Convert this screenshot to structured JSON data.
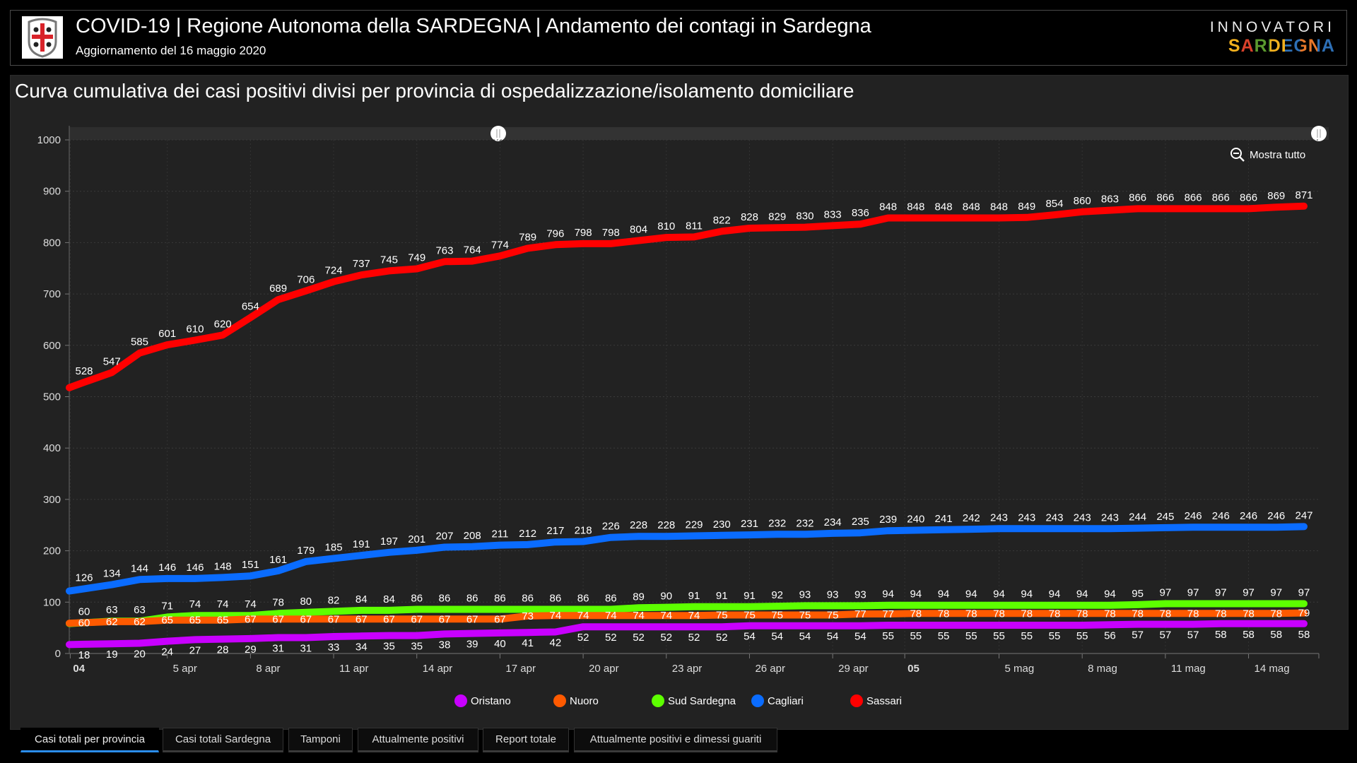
{
  "header": {
    "title": "COVID-19 | Regione Autonoma della SARDEGNA | Andamento dei contagi in Sardegna",
    "subtitle": "Aggiornamento del 16 maggio 2020",
    "brand_top": "INNOVATORI",
    "brand_bottom": "SARDEGNA"
  },
  "panel": {
    "title": "Curva cumulativa dei casi positivi divisi per provincia di ospedalizzazione/isolamento domiciliare",
    "zoom_reset_label": "Mostra tutto"
  },
  "tabs": [
    {
      "label": "Casi totali per provincia",
      "active": true
    },
    {
      "label": "Casi totali Sardegna",
      "active": false
    },
    {
      "label": "Tamponi",
      "active": false
    },
    {
      "label": "Attualmente positivi",
      "active": false
    },
    {
      "label": "Report totale",
      "active": false
    },
    {
      "label": "Attualmente positivi e dimessi guariti",
      "active": false
    }
  ],
  "chart_data": {
    "type": "line",
    "title": "Curva cumulativa dei casi positivi divisi per provincia di ospedalizzazione/isolamento domiciliare",
    "xlabel": "",
    "ylabel": "",
    "ylim": [
      0,
      1000
    ],
    "y_ticks": [
      0,
      100,
      200,
      300,
      400,
      500,
      600,
      700,
      800,
      900,
      1000
    ],
    "x_tick_labels": [
      "04",
      "5 apr",
      "8 apr",
      "11 apr",
      "14 apr",
      "17 apr",
      "20 apr",
      "23 apr",
      "26 apr",
      "29 apr",
      "05",
      "5 mag",
      "8 mag",
      "11 mag",
      "14 mag"
    ],
    "grid": true,
    "legend_position": "bottom-center",
    "series": [
      {
        "name": "Oristano",
        "color": "#c800ff",
        "values": [
          18,
          19,
          20,
          24,
          27,
          28,
          29,
          31,
          31,
          33,
          34,
          35,
          35,
          38,
          39,
          40,
          41,
          42,
          52,
          52,
          52,
          52,
          52,
          52,
          54,
          54,
          54,
          54,
          54,
          55,
          55,
          55,
          55,
          55,
          55,
          55,
          55,
          56,
          57,
          57,
          57,
          58,
          58,
          58,
          58
        ]
      },
      {
        "name": "Nuoro",
        "color": "#ff5a00",
        "values": [
          60,
          62,
          62,
          65,
          65,
          65,
          67,
          67,
          67,
          67,
          67,
          67,
          67,
          67,
          67,
          67,
          73,
          74,
          74,
          74,
          74,
          74,
          74,
          75,
          75,
          75,
          75,
          75,
          77,
          77,
          78,
          78,
          78,
          78,
          78,
          78,
          78,
          78,
          78,
          78,
          78,
          78,
          78,
          78,
          79
        ]
      },
      {
        "name": "Sud Sardegna",
        "color": "#5dff00",
        "values": [
          60,
          63,
          63,
          71,
          74,
          74,
          74,
          78,
          80,
          82,
          84,
          84,
          86,
          86,
          86,
          86,
          86,
          86,
          86,
          86,
          89,
          90,
          91,
          91,
          91,
          92,
          93,
          93,
          93,
          94,
          94,
          94,
          94,
          94,
          94,
          94,
          94,
          94,
          95,
          97,
          97,
          97,
          97,
          97,
          97
        ]
      },
      {
        "name": "Cagliari",
        "color": "#0a6cff",
        "values": [
          126,
          134,
          144,
          146,
          146,
          148,
          151,
          161,
          179,
          185,
          191,
          197,
          201,
          207,
          208,
          211,
          212,
          217,
          218,
          226,
          228,
          228,
          229,
          230,
          231,
          232,
          232,
          234,
          235,
          239,
          240,
          241,
          242,
          243,
          243,
          243,
          243,
          243,
          244,
          245,
          246,
          246,
          246,
          246,
          247
        ]
      },
      {
        "name": "Sassari",
        "color": "#ff0000",
        "values": [
          528,
          547,
          585,
          601,
          610,
          620,
          654,
          689,
          706,
          724,
          737,
          745,
          749,
          763,
          764,
          774,
          789,
          796,
          798,
          798,
          804,
          810,
          811,
          822,
          828,
          829,
          830,
          833,
          836,
          848,
          848,
          848,
          848,
          848,
          849,
          854,
          860,
          863,
          866,
          866,
          866,
          866,
          866,
          869,
          871
        ]
      }
    ]
  }
}
